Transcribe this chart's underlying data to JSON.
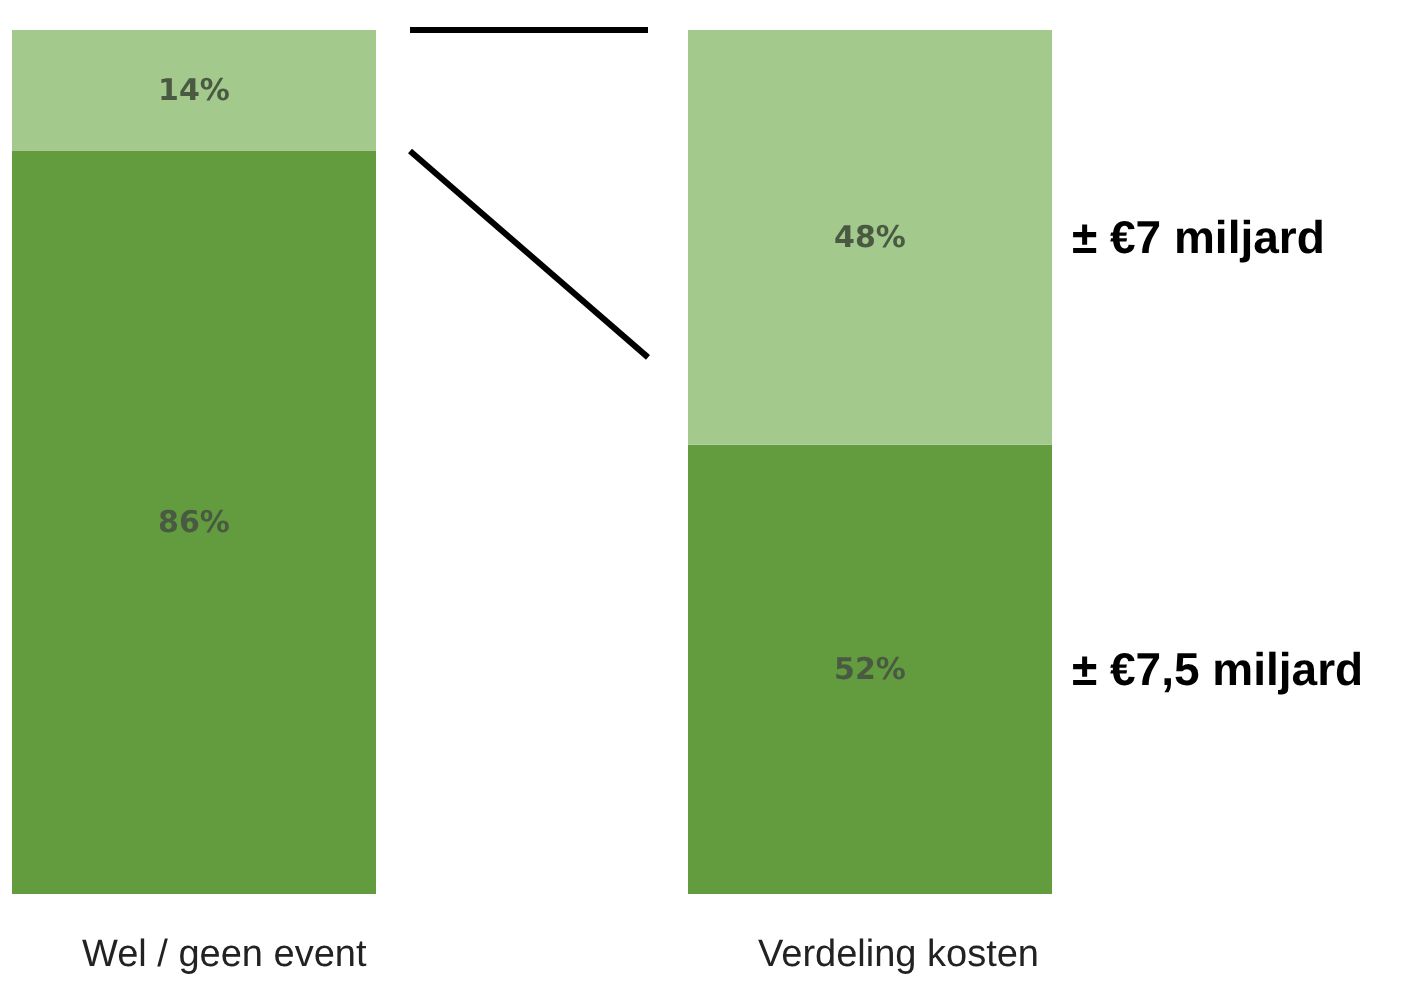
{
  "chart_data": {
    "type": "bar",
    "stacked": true,
    "categories": [
      "Wel / geen event",
      "Verdeling kosten"
    ],
    "series": [
      {
        "color": "#629c3f",
        "values": [
          86,
          52
        ],
        "value_labels": [
          "86%",
          "52%"
        ]
      },
      {
        "color": "#a4c98c",
        "values": [
          14,
          48
        ],
        "value_labels": [
          "14%",
          "48%"
        ]
      }
    ],
    "annotations": [
      "± €7 miljard",
      "± €7,5 miljard"
    ]
  }
}
